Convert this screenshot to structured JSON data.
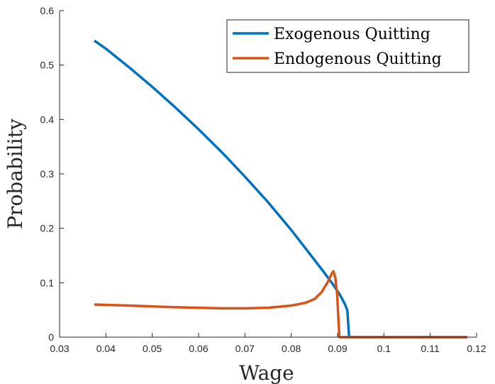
{
  "chart_data": {
    "type": "line",
    "title": "",
    "xlabel": "Wage",
    "ylabel": "Probability",
    "xlim": [
      0.03,
      0.12
    ],
    "ylim": [
      0,
      0.6
    ],
    "xticks": [
      0.03,
      0.04,
      0.05,
      0.06,
      0.07,
      0.08,
      0.09,
      0.1,
      0.11,
      0.12
    ],
    "xtick_labels": [
      "0.03",
      "0.04",
      "0.05",
      "0.06",
      "0.07",
      "0.08",
      "0.09",
      "0.1",
      "0.11",
      "0.12"
    ],
    "yticks": [
      0,
      0.1,
      0.2,
      0.3,
      0.4,
      0.5,
      0.6
    ],
    "ytick_labels": [
      "0",
      "0.1",
      "0.2",
      "0.3",
      "0.4",
      "0.5",
      "0.6"
    ],
    "grid": false,
    "legend_position": "top-right",
    "series": [
      {
        "name": "Exogenous Quitting",
        "color": "#0072BD",
        "points": [
          [
            0.0375,
            0.545
          ],
          [
            0.04,
            0.53
          ],
          [
            0.045,
            0.496
          ],
          [
            0.05,
            0.46
          ],
          [
            0.055,
            0.422
          ],
          [
            0.06,
            0.382
          ],
          [
            0.065,
            0.34
          ],
          [
            0.07,
            0.295
          ],
          [
            0.075,
            0.248
          ],
          [
            0.08,
            0.197
          ],
          [
            0.084,
            0.153
          ],
          [
            0.087,
            0.12
          ],
          [
            0.089,
            0.097
          ],
          [
            0.0905,
            0.078
          ],
          [
            0.0915,
            0.062
          ],
          [
            0.0921,
            0.05
          ],
          [
            0.0925,
            0.0
          ],
          [
            0.118,
            0.0
          ]
        ]
      },
      {
        "name": "Endogenous Quitting",
        "color": "#D95319",
        "points": [
          [
            0.0375,
            0.06
          ],
          [
            0.045,
            0.058
          ],
          [
            0.055,
            0.055
          ],
          [
            0.065,
            0.053
          ],
          [
            0.07,
            0.053
          ],
          [
            0.075,
            0.054
          ],
          [
            0.08,
            0.058
          ],
          [
            0.083,
            0.063
          ],
          [
            0.085,
            0.07
          ],
          [
            0.0865,
            0.082
          ],
          [
            0.0878,
            0.1
          ],
          [
            0.0887,
            0.116
          ],
          [
            0.0891,
            0.121
          ],
          [
            0.0895,
            0.11
          ],
          [
            0.0899,
            0.08
          ],
          [
            0.0902,
            0.03
          ],
          [
            0.0904,
            0.0
          ],
          [
            0.118,
            0.0
          ]
        ]
      }
    ]
  }
}
